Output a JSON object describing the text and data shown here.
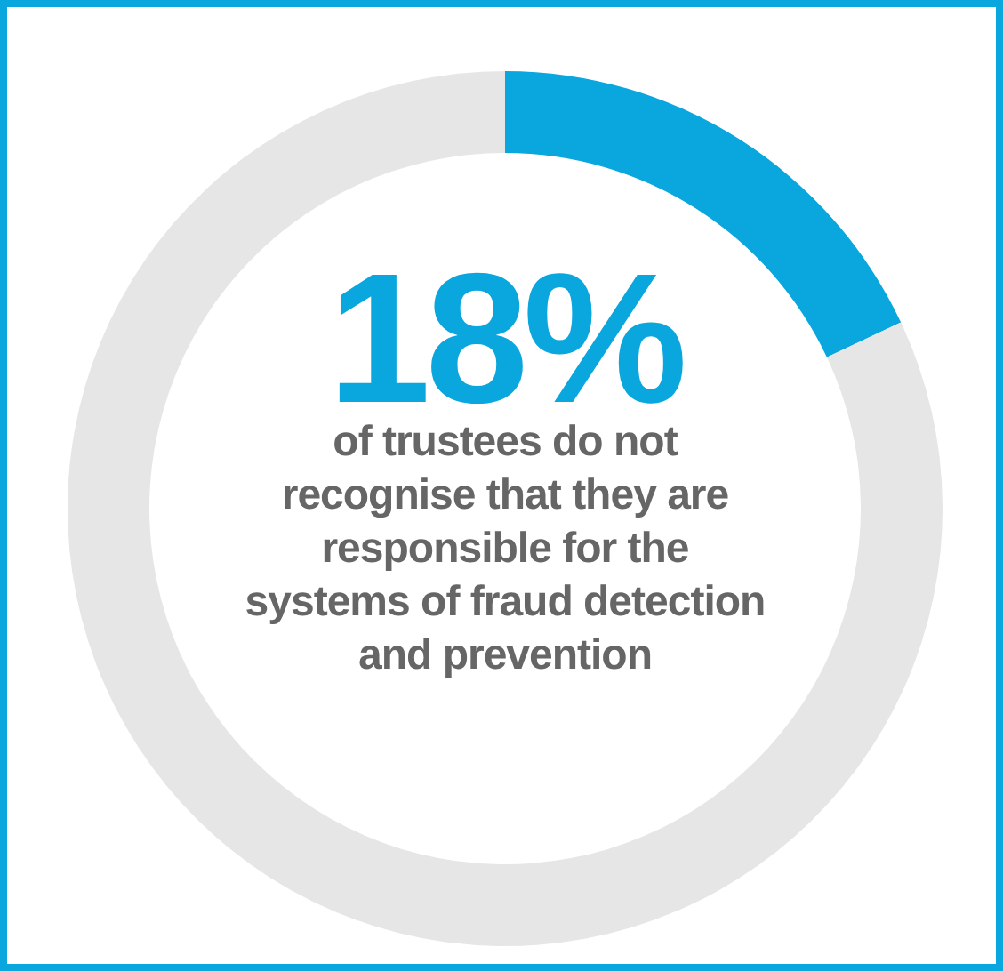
{
  "chart_data": {
    "type": "donut",
    "categories": [
      null,
      null
    ],
    "values": [
      18,
      82
    ],
    "colors": [
      "#0aa6de",
      "#e6e6e6"
    ],
    "value_labels": [
      "18%",
      null
    ],
    "annotations": [
      "of trustees do not recognise that they are responsible for the systems of fraud detection and prevention"
    ]
  }
}
